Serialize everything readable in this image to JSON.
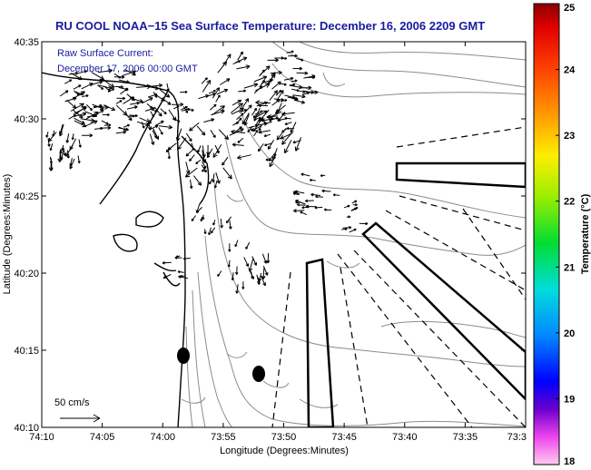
{
  "title": "RU COOL  NOAA−15  Sea Surface Temperature:  December 16, 2006 2209 GMT",
  "annotation": {
    "line1": "Raw Surface Current:",
    "line2": "December 17, 2006 00:00 GMT"
  },
  "scale_label": "50 cm/s",
  "xlabel": "Longitude (Degrees:Minutes)",
  "ylabel": "Latitude (Degrees:Minutes)",
  "x_ticks": [
    "74:10",
    "74:05",
    "74:00",
    "73:55",
    "73:50",
    "73:45",
    "73:40",
    "73:35",
    "73:3"
  ],
  "y_ticks": [
    "40:35",
    "40:30",
    "40:25",
    "40:20",
    "40:15",
    "40:10"
  ],
  "colorbar": {
    "label": "Temperature (°C)",
    "ticks": [
      "25",
      "24",
      "23",
      "22",
      "21",
      "20",
      "19",
      "18"
    ],
    "range": [
      18,
      25
    ]
  },
  "colors": {
    "title": "#1a1aa0",
    "annotation": "#1a1aa0",
    "contour": "#8c8c8c",
    "coast": "#000000",
    "vector": "#000000"
  }
}
